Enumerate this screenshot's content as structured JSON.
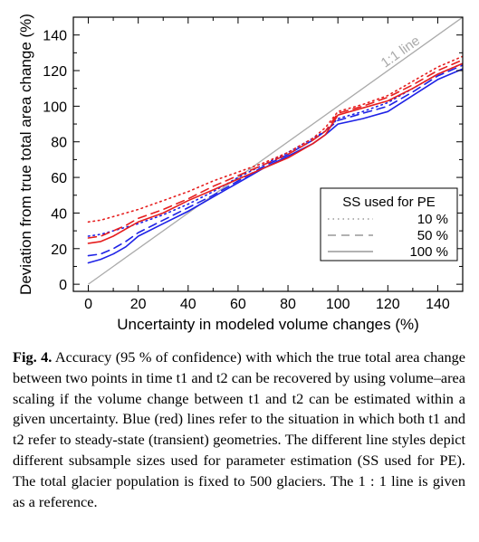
{
  "chart_data": {
    "type": "line",
    "xlabel": "Uncertainty in modeled volume changes (%)",
    "ylabel": "Deviation from true total area change (%)",
    "xlim": [
      -6,
      150
    ],
    "ylim": [
      -4,
      150
    ],
    "x_ticks": [
      0,
      20,
      40,
      60,
      80,
      100,
      120,
      140
    ],
    "y_ticks": [
      0,
      20,
      40,
      60,
      80,
      100,
      120,
      140
    ],
    "grid": false,
    "reference_line": {
      "label": "1:1 line",
      "x": [
        0,
        150
      ],
      "y": [
        0,
        150
      ],
      "color": "#aaaaaa"
    },
    "legend": {
      "title": "SS used for PE",
      "placement": "lower-right",
      "entries": [
        {
          "label": "10 %",
          "style": "dotted"
        },
        {
          "label": "50 %",
          "style": "dashed"
        },
        {
          "label": "100 %",
          "style": "solid"
        }
      ]
    },
    "series": [
      {
        "group": "steady-state",
        "color": "#1e22e6",
        "style": "solid",
        "x": [
          0,
          5,
          10,
          15,
          20,
          30,
          40,
          50,
          60,
          70,
          80,
          90,
          95,
          100,
          110,
          120,
          130,
          140,
          150
        ],
        "y": [
          12,
          14,
          17,
          21,
          27,
          34,
          41,
          49,
          57,
          65,
          72,
          79,
          84,
          90,
          93,
          97,
          106,
          115,
          121
        ]
      },
      {
        "group": "steady-state",
        "color": "#1e22e6",
        "style": "dashed",
        "x": [
          0,
          5,
          10,
          15,
          20,
          30,
          40,
          50,
          60,
          70,
          80,
          90,
          95,
          100,
          110,
          120,
          130,
          140,
          150
        ],
        "y": [
          16,
          17,
          20,
          24,
          29,
          36,
          43,
          50,
          58,
          66,
          73,
          81,
          86,
          92,
          96,
          100,
          108,
          117,
          123
        ]
      },
      {
        "group": "steady-state",
        "color": "#1e22e6",
        "style": "dotted",
        "x": [
          0,
          5,
          10,
          15,
          20,
          30,
          40,
          50,
          60,
          70,
          80,
          90,
          95,
          100,
          110,
          120,
          130,
          140,
          150
        ],
        "y": [
          27,
          28,
          30,
          32,
          34,
          39,
          45,
          52,
          60,
          67,
          74,
          82,
          86,
          93,
          97,
          102,
          110,
          118,
          124
        ]
      },
      {
        "group": "transient",
        "color": "#e61e1e",
        "style": "solid",
        "x": [
          0,
          5,
          10,
          15,
          20,
          30,
          40,
          50,
          60,
          70,
          80,
          90,
          95,
          100,
          110,
          120,
          130,
          140,
          150
        ],
        "y": [
          23,
          24,
          27,
          31,
          35,
          40,
          47,
          53,
          59,
          65,
          71,
          79,
          84,
          95,
          99,
          103,
          110,
          118,
          124
        ]
      },
      {
        "group": "transient",
        "color": "#e61e1e",
        "style": "dashed",
        "x": [
          0,
          5,
          10,
          15,
          20,
          30,
          40,
          50,
          60,
          70,
          80,
          90,
          95,
          100,
          110,
          120,
          130,
          140,
          150
        ],
        "y": [
          26,
          27,
          30,
          33,
          37,
          42,
          48,
          55,
          61,
          67,
          73,
          81,
          86,
          96,
          100,
          105,
          112,
          120,
          126
        ]
      },
      {
        "group": "transient",
        "color": "#e61e1e",
        "style": "dotted",
        "x": [
          0,
          5,
          10,
          15,
          20,
          30,
          40,
          50,
          60,
          70,
          80,
          90,
          95,
          100,
          110,
          120,
          130,
          140,
          150
        ],
        "y": [
          35,
          36,
          38,
          40,
          42,
          47,
          52,
          58,
          63,
          68,
          74,
          82,
          88,
          97,
          101,
          106,
          114,
          122,
          128
        ]
      }
    ]
  },
  "caption": {
    "label": "Fig. 4.",
    "text": "Accuracy (95 % of confidence) with which the true total area change between two points in time t1 and t2 can be recovered by using volume–area scaling if the volume change between t1 and t2 can be estimated within a given uncertainty. Blue (red) lines refer to the situation in which both t1 and t2 refer to steady-state (transient) geometries. The different line styles depict different subsample sizes used for parameter estimation (SS used for PE). The total glacier population is fixed to 500 glaciers. The 1 : 1 line is given as a reference."
  }
}
